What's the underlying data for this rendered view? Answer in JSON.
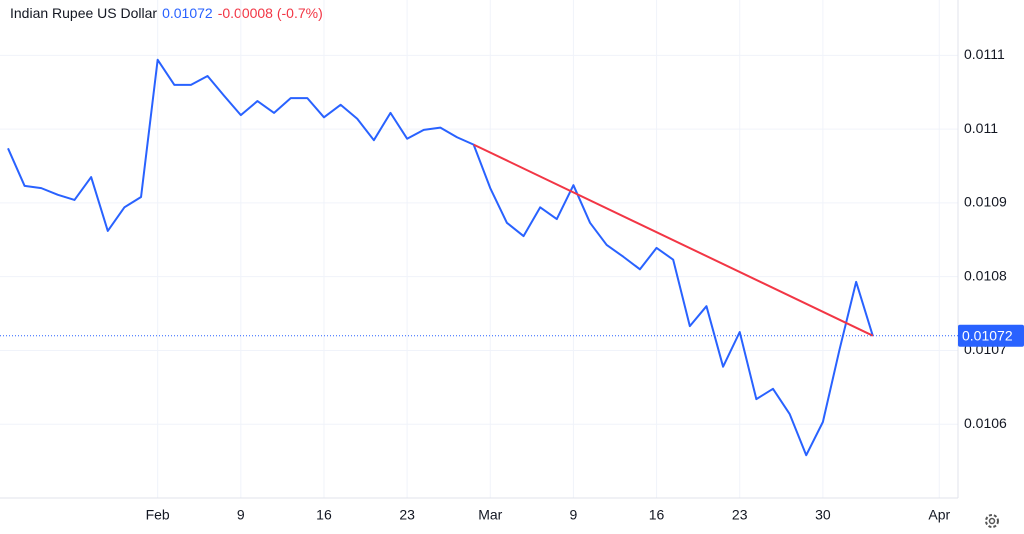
{
  "chart_data": {
    "type": "line",
    "title": "Indian Rupee US Dollar",
    "price": 0.01072,
    "change": "-0.00008 (-0.7%)",
    "categories": [
      null,
      null,
      null,
      null,
      null,
      null,
      null,
      null,
      null,
      "Feb",
      null,
      null,
      null,
      null,
      "9",
      null,
      null,
      null,
      null,
      "16",
      null,
      null,
      null,
      null,
      "23",
      null,
      null,
      null,
      null,
      "Mar",
      null,
      null,
      null,
      null,
      "9",
      null,
      null,
      null,
      null,
      "16",
      null,
      null,
      null,
      null,
      "23",
      null,
      null,
      null,
      null,
      "30",
      null,
      null,
      null,
      null,
      null,
      null,
      "Apr"
    ],
    "series": [
      {
        "name": "Indian Rupee US Dollar",
        "color": "#2962ff",
        "values": [
          0.010974,
          0.010923,
          0.01092,
          0.010911,
          0.010904,
          0.010935,
          0.010862,
          0.010894,
          0.010908,
          0.011094,
          0.01106,
          0.01106,
          0.011072,
          0.011045,
          0.011019,
          0.011038,
          0.011022,
          0.011042,
          0.011042,
          0.011016,
          0.011033,
          0.011014,
          0.010985,
          0.011022,
          0.010987,
          0.010999,
          0.011002,
          0.010989,
          0.010979,
          0.01092,
          0.010873,
          0.010855,
          0.010894,
          0.010878,
          0.010924,
          0.010873,
          0.010843,
          0.010827,
          0.01081,
          0.010839,
          0.010823,
          0.010733,
          0.01076,
          0.010678,
          0.010725,
          0.010634,
          0.010648,
          0.010614,
          0.010558,
          0.010603,
          0.010701,
          0.010793,
          0.01072,
          null,
          null,
          null,
          null
        ]
      }
    ],
    "trendline": {
      "color": "#f23645",
      "start": [
        28,
        0.010979
      ],
      "end": [
        52,
        0.01072
      ]
    },
    "ylim": [
      0.0105,
      0.011175
    ],
    "yticks": [
      0.0106,
      0.0107,
      0.0108,
      0.0109,
      0.011,
      0.0111
    ],
    "grid": true
  }
}
